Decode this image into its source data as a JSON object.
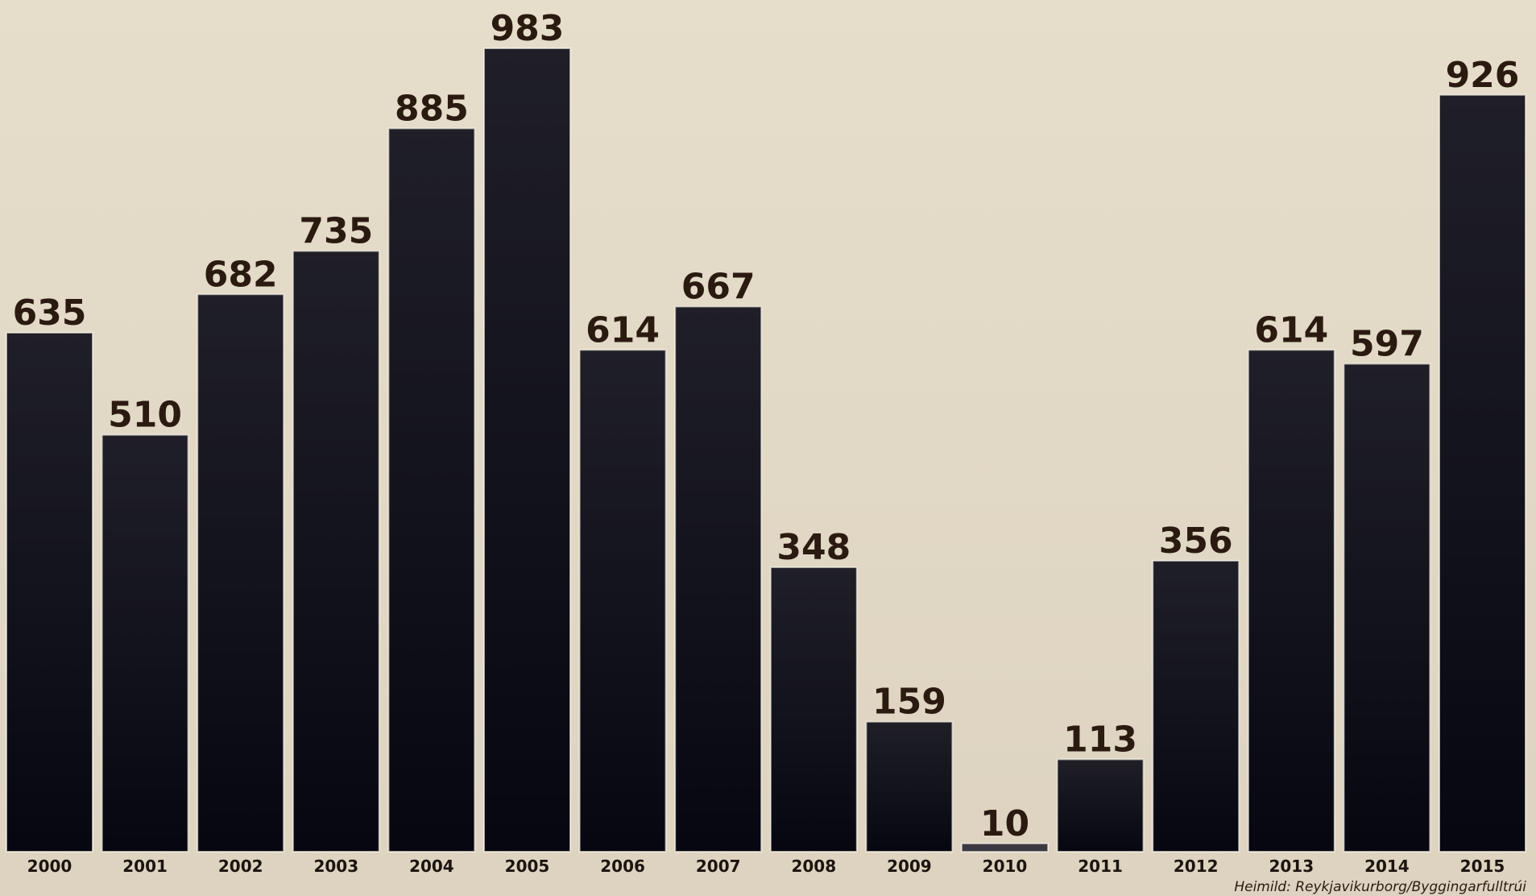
{
  "chart_data": {
    "type": "bar",
    "categories": [
      "2000",
      "2001",
      "2002",
      "2003",
      "2004",
      "2005",
      "2006",
      "2007",
      "2008",
      "2009",
      "2010",
      "2011",
      "2012",
      "2013",
      "2014",
      "2015"
    ],
    "values": [
      635,
      510,
      682,
      735,
      885,
      983,
      614,
      667,
      348,
      159,
      10,
      113,
      356,
      614,
      597,
      926
    ],
    "color": "#0b0b16",
    "source": "Heimild: Reykjavikurborg/Byggingarfulltrúi"
  }
}
